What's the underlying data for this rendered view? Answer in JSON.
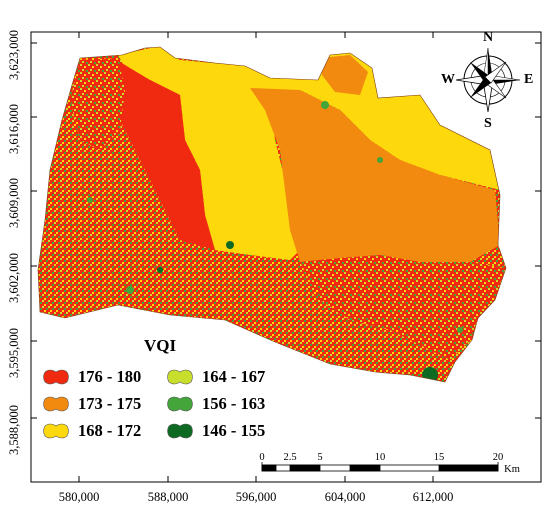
{
  "map": {
    "y_ticks": [
      "3,623,000",
      "3,616,000",
      "3,609,000",
      "3,602,000",
      "3,595,000",
      "3,588,000"
    ],
    "x_ticks": [
      "580,000",
      "588,000",
      "596,000",
      "604,000",
      "612,000"
    ]
  },
  "legend": {
    "title": "VQI",
    "items": [
      {
        "label": "176 - 180",
        "color": "#f02a10"
      },
      {
        "label": "173 - 175",
        "color": "#f28a10"
      },
      {
        "label": "168 - 172",
        "color": "#fcd80c"
      },
      {
        "label": "164 - 167",
        "color": "#c8de2c"
      },
      {
        "label": "156 - 163",
        "color": "#44a63a"
      },
      {
        "label": "146 - 155",
        "color": "#0e6a22"
      }
    ]
  },
  "compass": {
    "n": "N",
    "s": "S",
    "e": "E",
    "w": "W"
  },
  "scalebar": {
    "ticks": [
      "0",
      "2.5",
      "5",
      "10",
      "15",
      "20"
    ],
    "unit": "Km"
  }
}
